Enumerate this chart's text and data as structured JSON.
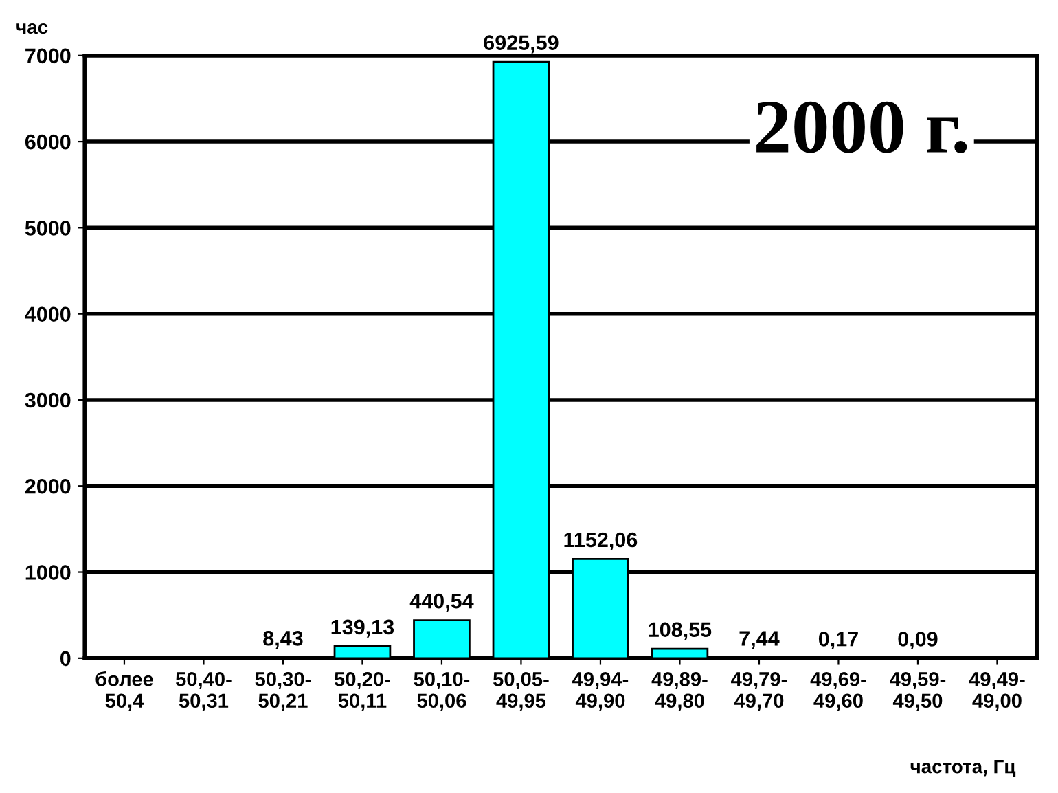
{
  "chart_data": {
    "type": "bar",
    "categories": [
      "более\n50,4",
      "50,40-\n50,31",
      "50,30-\n50,21",
      "50,20-\n50,11",
      "50,10-\n50,06",
      "50,05-\n49,95",
      "49,94-\n49,90",
      "49,89-\n49,80",
      "49,79-\n49,70",
      "49,69-\n49,60",
      "49,59-\n49,50",
      "49,49-\n49,00"
    ],
    "series": [
      {
        "color": "#00ffff",
        "values": [
          null,
          null,
          8.43,
          139.13,
          440.54,
          6925.59,
          1152.06,
          108.55,
          7.44,
          0.17,
          0.09,
          null
        ],
        "value_labels": [
          null,
          null,
          "8,43",
          "139,13",
          "440,54",
          "6925,59",
          "1152,06",
          "108,55",
          "7,44",
          "0,17",
          "0,09",
          null
        ]
      }
    ],
    "ylabel": "час",
    "xlabel": "частота, Гц",
    "annotations": [
      "2000 г."
    ],
    "ylim": [
      0,
      7000
    ],
    "yticks": [
      0,
      1000,
      2000,
      3000,
      4000,
      5000,
      6000,
      7000
    ],
    "grid": "y",
    "legend": false
  }
}
